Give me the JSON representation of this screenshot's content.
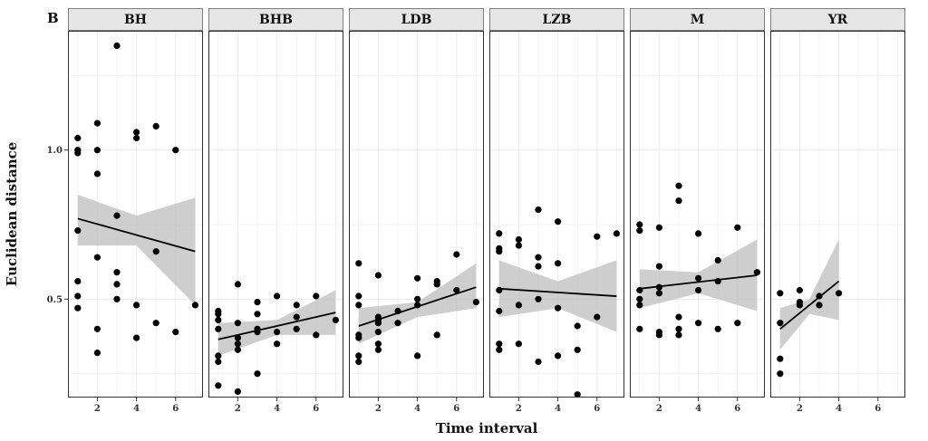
{
  "figure": {
    "panel_label": "B",
    "xlabel": "Time interval",
    "ylabel": "Euclidean distance"
  },
  "style": {
    "point_color": "#000000",
    "line_color": "#000000",
    "ribbon_color": "#bdbdbd",
    "strip_fill": "#e6e6e6",
    "strip_border": "#7f7f7f",
    "grid_color": "#ececec"
  },
  "chart_data": {
    "type": "scatter",
    "facet_by": "site",
    "xlabel": "Time interval",
    "ylabel": "Euclidean distance",
    "xlim": [
      0.5,
      7.4
    ],
    "ylim": [
      0.17,
      1.4
    ],
    "x_ticks": [
      2,
      4,
      6
    ],
    "y_ticks": [
      0.5,
      1.0
    ],
    "x_tick_labels": [
      "2",
      "4",
      "6"
    ],
    "y_tick_labels": [
      "0.5",
      "1.0"
    ],
    "grid": true,
    "smoother": "linear regression with 95% confidence band",
    "facets": [
      {
        "name": "BH",
        "points": [
          [
            1,
            1.04
          ],
          [
            1,
            1.0
          ],
          [
            1,
            0.99
          ],
          [
            1,
            0.73
          ],
          [
            1,
            0.56
          ],
          [
            1,
            0.51
          ],
          [
            1,
            0.47
          ],
          [
            2,
            1.09
          ],
          [
            2,
            1.0
          ],
          [
            2,
            0.92
          ],
          [
            2,
            0.64
          ],
          [
            2,
            0.4
          ],
          [
            2,
            0.32
          ],
          [
            3,
            1.35
          ],
          [
            3,
            0.78
          ],
          [
            3,
            0.59
          ],
          [
            3,
            0.55
          ],
          [
            3,
            0.5
          ],
          [
            4,
            1.06
          ],
          [
            4,
            1.04
          ],
          [
            4,
            0.48
          ],
          [
            4,
            0.37
          ],
          [
            5,
            1.08
          ],
          [
            5,
            0.66
          ],
          [
            5,
            0.42
          ],
          [
            6,
            1.0
          ],
          [
            6,
            0.39
          ],
          [
            7,
            0.48
          ]
        ],
        "fit": {
          "x": [
            1,
            7
          ],
          "y": [
            0.77,
            0.66
          ]
        },
        "band": {
          "x": [
            1,
            4,
            7
          ],
          "upper": [
            0.85,
            0.78,
            0.84
          ],
          "lower": [
            0.68,
            0.68,
            0.48
          ]
        }
      },
      {
        "name": "BHB",
        "points": [
          [
            1,
            0.46
          ],
          [
            1,
            0.45
          ],
          [
            1,
            0.43
          ],
          [
            1,
            0.4
          ],
          [
            1,
            0.31
          ],
          [
            1,
            0.29
          ],
          [
            1,
            0.21
          ],
          [
            2,
            0.55
          ],
          [
            2,
            0.42
          ],
          [
            2,
            0.37
          ],
          [
            2,
            0.35
          ],
          [
            2,
            0.33
          ],
          [
            2,
            0.19
          ],
          [
            3,
            0.49
          ],
          [
            3,
            0.45
          ],
          [
            3,
            0.4
          ],
          [
            3,
            0.39
          ],
          [
            3,
            0.25
          ],
          [
            4,
            0.51
          ],
          [
            4,
            0.39
          ],
          [
            4,
            0.35
          ],
          [
            5,
            0.48
          ],
          [
            5,
            0.44
          ],
          [
            5,
            0.4
          ],
          [
            6,
            0.51
          ],
          [
            6,
            0.38
          ],
          [
            7,
            0.43
          ]
        ],
        "fit": {
          "x": [
            1,
            7
          ],
          "y": [
            0.365,
            0.455
          ]
        },
        "band": {
          "x": [
            1,
            4,
            7
          ],
          "upper": [
            0.42,
            0.43,
            0.53
          ],
          "lower": [
            0.31,
            0.38,
            0.38
          ]
        }
      },
      {
        "name": "LDB",
        "points": [
          [
            1,
            0.62
          ],
          [
            1,
            0.51
          ],
          [
            1,
            0.48
          ],
          [
            1,
            0.38
          ],
          [
            1,
            0.37
          ],
          [
            1,
            0.31
          ],
          [
            1,
            0.29
          ],
          [
            2,
            0.58
          ],
          [
            2,
            0.44
          ],
          [
            2,
            0.43
          ],
          [
            2,
            0.42
          ],
          [
            2,
            0.39
          ],
          [
            2,
            0.35
          ],
          [
            2,
            0.33
          ],
          [
            3,
            0.46
          ],
          [
            3,
            0.42
          ],
          [
            4,
            0.57
          ],
          [
            4,
            0.5
          ],
          [
            4,
            0.48
          ],
          [
            4,
            0.31
          ],
          [
            5,
            0.56
          ],
          [
            5,
            0.55
          ],
          [
            5,
            0.38
          ],
          [
            6,
            0.65
          ],
          [
            6,
            0.53
          ],
          [
            7,
            0.49
          ]
        ],
        "fit": {
          "x": [
            1,
            7
          ],
          "y": [
            0.41,
            0.54
          ]
        },
        "band": {
          "x": [
            1,
            4,
            7
          ],
          "upper": [
            0.47,
            0.49,
            0.62
          ],
          "lower": [
            0.35,
            0.44,
            0.47
          ]
        }
      },
      {
        "name": "LZB",
        "points": [
          [
            1,
            0.72
          ],
          [
            1,
            0.67
          ],
          [
            1,
            0.66
          ],
          [
            1,
            0.53
          ],
          [
            1,
            0.46
          ],
          [
            1,
            0.35
          ],
          [
            1,
            0.33
          ],
          [
            2,
            0.7
          ],
          [
            2,
            0.68
          ],
          [
            2,
            0.48
          ],
          [
            2,
            0.35
          ],
          [
            3,
            0.8
          ],
          [
            3,
            0.64
          ],
          [
            3,
            0.61
          ],
          [
            3,
            0.5
          ],
          [
            3,
            0.29
          ],
          [
            4,
            0.76
          ],
          [
            4,
            0.62
          ],
          [
            4,
            0.47
          ],
          [
            4,
            0.31
          ],
          [
            5,
            0.41
          ],
          [
            5,
            0.33
          ],
          [
            5,
            0.18
          ],
          [
            6,
            0.71
          ],
          [
            6,
            0.44
          ],
          [
            7,
            0.72
          ]
        ],
        "fit": {
          "x": [
            1,
            7
          ],
          "y": [
            0.535,
            0.51
          ]
        },
        "band": {
          "x": [
            1,
            4,
            7
          ],
          "upper": [
            0.63,
            0.56,
            0.63
          ],
          "lower": [
            0.44,
            0.47,
            0.39
          ]
        }
      },
      {
        "name": "M",
        "points": [
          [
            1,
            0.75
          ],
          [
            1,
            0.73
          ],
          [
            1,
            0.53
          ],
          [
            1,
            0.5
          ],
          [
            1,
            0.48
          ],
          [
            1,
            0.4
          ],
          [
            2,
            0.74
          ],
          [
            2,
            0.61
          ],
          [
            2,
            0.54
          ],
          [
            2,
            0.52
          ],
          [
            2,
            0.39
          ],
          [
            2,
            0.38
          ],
          [
            3,
            0.88
          ],
          [
            3,
            0.83
          ],
          [
            3,
            0.44
          ],
          [
            3,
            0.4
          ],
          [
            3,
            0.38
          ],
          [
            4,
            0.72
          ],
          [
            4,
            0.57
          ],
          [
            4,
            0.53
          ],
          [
            4,
            0.42
          ],
          [
            5,
            0.63
          ],
          [
            5,
            0.56
          ],
          [
            5,
            0.4
          ],
          [
            6,
            0.74
          ],
          [
            6,
            0.42
          ],
          [
            7,
            0.59
          ]
        ],
        "fit": {
          "x": [
            1,
            7
          ],
          "y": [
            0.535,
            0.58
          ]
        },
        "band": {
          "x": [
            1,
            4,
            7
          ],
          "upper": [
            0.6,
            0.59,
            0.7
          ],
          "lower": [
            0.47,
            0.52,
            0.46
          ]
        }
      },
      {
        "name": "YR",
        "points": [
          [
            1,
            0.52
          ],
          [
            1,
            0.42
          ],
          [
            1,
            0.3
          ],
          [
            1,
            0.25
          ],
          [
            2,
            0.53
          ],
          [
            2,
            0.49
          ],
          [
            2,
            0.48
          ],
          [
            3,
            0.51
          ],
          [
            3,
            0.48
          ],
          [
            4,
            0.52
          ]
        ],
        "fit": {
          "x": [
            1,
            4
          ],
          "y": [
            0.4,
            0.56
          ]
        },
        "band": {
          "x": [
            1,
            2.5,
            4
          ],
          "upper": [
            0.47,
            0.5,
            0.7
          ],
          "lower": [
            0.33,
            0.45,
            0.43
          ]
        }
      }
    ]
  }
}
